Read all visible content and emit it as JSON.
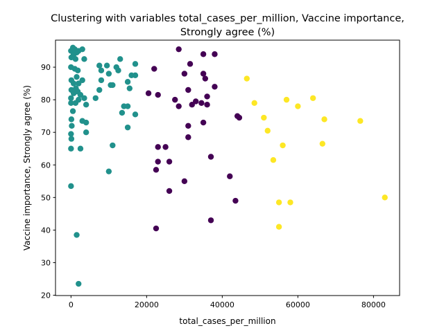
{
  "chart_data": {
    "type": "scatter",
    "title_lines": [
      "Clustering with variables total_cases_per_million, Vaccine importance,",
      "Strongly agree (%)"
    ],
    "xlabel": "total_cases_per_million",
    "ylabel": "Vaccine importance, Strongly agree (%)",
    "xlim": [
      -4100,
      86900
    ],
    "ylim": [
      19.9,
      98.3
    ],
    "x_ticks": [
      0,
      20000,
      40000,
      60000,
      80000
    ],
    "y_ticks": [
      20,
      30,
      40,
      50,
      60,
      70,
      80,
      90
    ],
    "grid": false,
    "legend": "none",
    "colors": {
      "cluster_0": "#440154",
      "cluster_1": "#21918c",
      "cluster_2": "#fde725"
    },
    "series": [
      {
        "color": "#440154",
        "points": [
          [
            28500,
            95.5
          ],
          [
            38000,
            94.0
          ],
          [
            35000,
            94.0
          ],
          [
            31500,
            91.0
          ],
          [
            22000,
            89.5
          ],
          [
            35000,
            88.0
          ],
          [
            30000,
            88.0
          ],
          [
            35500,
            86.5
          ],
          [
            38000,
            84.0
          ],
          [
            31000,
            83.0
          ],
          [
            20500,
            82.0
          ],
          [
            23000,
            81.5
          ],
          [
            36000,
            81.0
          ],
          [
            27500,
            80.0
          ],
          [
            34500,
            79.0
          ],
          [
            33000,
            79.5
          ],
          [
            32000,
            78.5
          ],
          [
            36000,
            78.5
          ],
          [
            28500,
            78.0
          ],
          [
            44000,
            75.0
          ],
          [
            44500,
            74.5
          ],
          [
            35000,
            73.0
          ],
          [
            31000,
            72.0
          ],
          [
            31000,
            68.5
          ],
          [
            23000,
            65.5
          ],
          [
            25000,
            65.5
          ],
          [
            37000,
            62.5
          ],
          [
            23000,
            61.0
          ],
          [
            26000,
            61.0
          ],
          [
            22500,
            58.5
          ],
          [
            42000,
            56.5
          ],
          [
            30000,
            55.0
          ],
          [
            26000,
            52.0
          ],
          [
            43500,
            49.0
          ],
          [
            37000,
            43.0
          ],
          [
            22500,
            40.5
          ]
        ]
      },
      {
        "color": "#21918c",
        "points": [
          [
            500,
            96.0
          ],
          [
            1000,
            95.5
          ],
          [
            3000,
            95.5
          ],
          [
            1500,
            94.5
          ],
          [
            0,
            95.0
          ],
          [
            700,
            94.0
          ],
          [
            2000,
            95.0
          ],
          [
            100,
            93.0
          ],
          [
            600,
            93.5
          ],
          [
            1200,
            92.5
          ],
          [
            3500,
            92.5
          ],
          [
            13000,
            92.5
          ],
          [
            17000,
            91.0
          ],
          [
            7500,
            90.5
          ],
          [
            9500,
            90.5
          ],
          [
            12000,
            90.0
          ],
          [
            0,
            90.0
          ],
          [
            1000,
            89.5
          ],
          [
            1800,
            89.0
          ],
          [
            8000,
            89.0
          ],
          [
            10000,
            88.0
          ],
          [
            12500,
            89.0
          ],
          [
            16000,
            87.5
          ],
          [
            17000,
            87.5
          ],
          [
            1500,
            87.0
          ],
          [
            100,
            86.0
          ],
          [
            3000,
            86.0
          ],
          [
            8000,
            86.0
          ],
          [
            15000,
            85.5
          ],
          [
            700,
            85.0
          ],
          [
            2000,
            85.0
          ],
          [
            10500,
            84.5
          ],
          [
            11000,
            84.5
          ],
          [
            15500,
            83.5
          ],
          [
            100,
            83.0
          ],
          [
            1300,
            83.5
          ],
          [
            7500,
            83.0
          ],
          [
            1800,
            82.5
          ],
          [
            700,
            82.0
          ],
          [
            2500,
            81.5
          ],
          [
            0,
            80.5
          ],
          [
            3500,
            80.5
          ],
          [
            6500,
            80.5
          ],
          [
            2000,
            80.0
          ],
          [
            0,
            79.0
          ],
          [
            1200,
            79.0
          ],
          [
            4000,
            78.5
          ],
          [
            14000,
            78.0
          ],
          [
            15000,
            78.0
          ],
          [
            500,
            76.5
          ],
          [
            13500,
            76.0
          ],
          [
            17000,
            75.5
          ],
          [
            100,
            74.0
          ],
          [
            3000,
            73.5
          ],
          [
            4000,
            73.0
          ],
          [
            200,
            72.0
          ],
          [
            15000,
            71.5
          ],
          [
            4000,
            70.0
          ],
          [
            0,
            69.5
          ],
          [
            100,
            68.0
          ],
          [
            11000,
            66.0
          ],
          [
            0,
            65.0
          ],
          [
            2500,
            65.0
          ],
          [
            10000,
            58.0
          ],
          [
            0,
            53.5
          ],
          [
            1500,
            38.5
          ],
          [
            2000,
            23.5
          ]
        ]
      },
      {
        "color": "#fde725",
        "points": [
          [
            46500,
            86.5
          ],
          [
            64000,
            80.5
          ],
          [
            57000,
            80.0
          ],
          [
            48500,
            79.0
          ],
          [
            60000,
            78.0
          ],
          [
            51000,
            74.5
          ],
          [
            67000,
            74.0
          ],
          [
            76500,
            73.5
          ],
          [
            52000,
            70.5
          ],
          [
            66500,
            66.5
          ],
          [
            56000,
            66.0
          ],
          [
            53500,
            61.5
          ],
          [
            83000,
            50.0
          ],
          [
            55000,
            48.5
          ],
          [
            58000,
            48.5
          ],
          [
            55000,
            41.0
          ]
        ]
      }
    ]
  }
}
